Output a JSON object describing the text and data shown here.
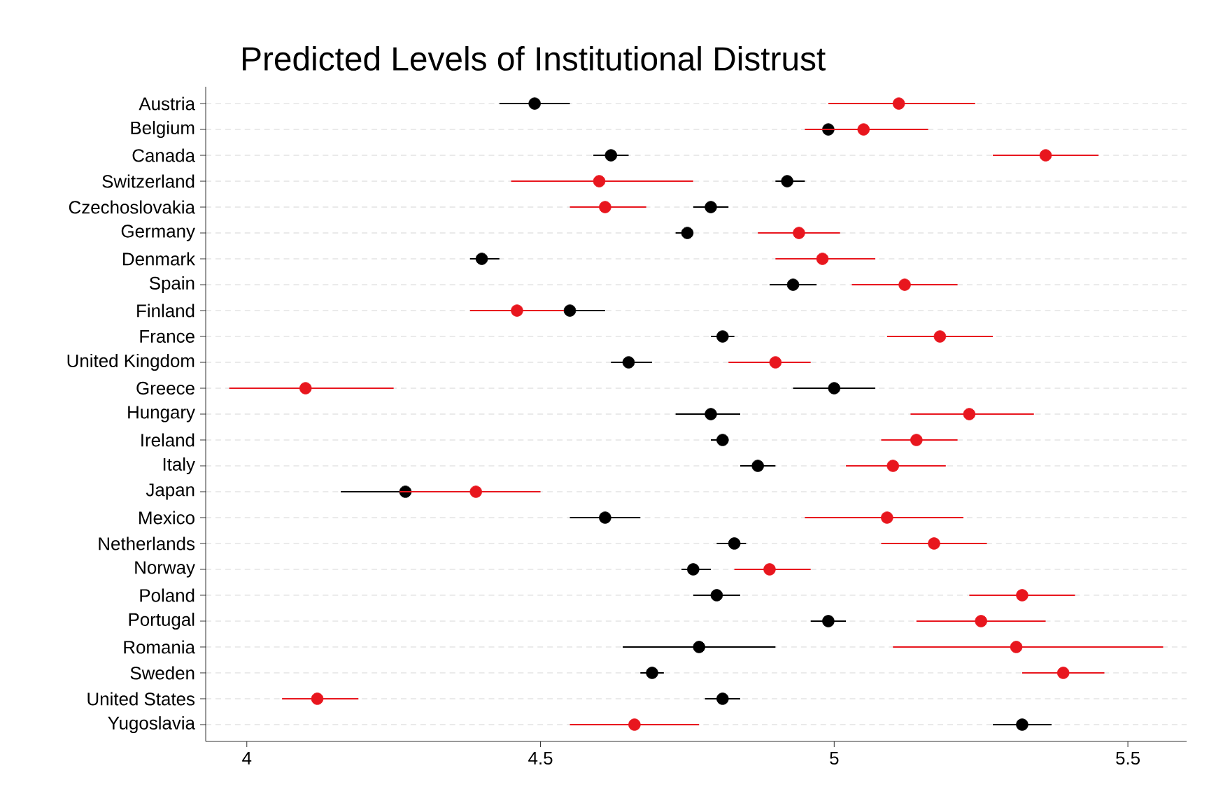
{
  "chart_data": {
    "type": "scatter",
    "orientation": "horizontal",
    "title": "Predicted Levels of Institutional Distrust",
    "categories": [
      "Austria",
      "Belgium",
      "Canada",
      "Switzerland",
      "Czechoslovakia",
      "Germany",
      "Denmark",
      "Spain",
      "Finland",
      "France",
      "United Kingdom",
      "Greece",
      "Hungary",
      "Ireland",
      "Italy",
      "Japan",
      "Mexico",
      "Netherlands",
      "Norway",
      "Poland",
      "Portugal",
      "Romania",
      "Sweden",
      "United States",
      "Yugoslavia"
    ],
    "xlim": [
      3.93,
      5.6
    ],
    "xticks": [
      4,
      4.5,
      5,
      5.5
    ],
    "grid": "y",
    "marker": "circle",
    "series": [
      {
        "color": "#000000",
        "values": [
          4.49,
          4.99,
          4.62,
          4.92,
          4.79,
          4.75,
          4.4,
          4.93,
          4.55,
          4.81,
          4.65,
          5.0,
          4.79,
          4.81,
          4.87,
          4.27,
          4.61,
          4.83,
          4.76,
          4.8,
          4.99,
          4.77,
          4.69,
          4.81,
          5.32
        ],
        "errors": [
          [
            4.43,
            4.55
          ],
          [
            4.98,
            5.01
          ],
          [
            4.59,
            4.65
          ],
          [
            4.9,
            4.95
          ],
          [
            4.76,
            4.82
          ],
          [
            4.73,
            4.76
          ],
          [
            4.38,
            4.43
          ],
          [
            4.89,
            4.97
          ],
          [
            4.5,
            4.61
          ],
          [
            4.79,
            4.83
          ],
          [
            4.62,
            4.69
          ],
          [
            4.93,
            5.07
          ],
          [
            4.73,
            4.84
          ],
          [
            4.79,
            4.82
          ],
          [
            4.84,
            4.9
          ],
          [
            4.16,
            4.38
          ],
          [
            4.55,
            4.67
          ],
          [
            4.8,
            4.85
          ],
          [
            4.74,
            4.79
          ],
          [
            4.76,
            4.84
          ],
          [
            4.96,
            5.02
          ],
          [
            4.64,
            4.9
          ],
          [
            4.67,
            4.71
          ],
          [
            4.78,
            4.84
          ],
          [
            5.27,
            5.37
          ]
        ]
      },
      {
        "color": "#e8161e",
        "values": [
          5.11,
          5.05,
          5.36,
          4.6,
          4.61,
          4.94,
          4.98,
          5.12,
          4.46,
          5.18,
          4.9,
          4.1,
          5.23,
          5.14,
          5.1,
          4.39,
          5.09,
          5.17,
          4.89,
          5.32,
          5.25,
          5.31,
          5.39,
          4.12,
          4.66
        ],
        "errors": [
          [
            4.99,
            5.24
          ],
          [
            4.95,
            5.16
          ],
          [
            5.27,
            5.45
          ],
          [
            4.45,
            4.76
          ],
          [
            4.55,
            4.68
          ],
          [
            4.87,
            5.01
          ],
          [
            4.9,
            5.07
          ],
          [
            5.03,
            5.21
          ],
          [
            4.38,
            4.54
          ],
          [
            5.09,
            5.27
          ],
          [
            4.82,
            4.96
          ],
          [
            3.97,
            4.25
          ],
          [
            5.13,
            5.34
          ],
          [
            5.08,
            5.21
          ],
          [
            5.02,
            5.19
          ],
          [
            4.26,
            4.5
          ],
          [
            4.95,
            5.22
          ],
          [
            5.08,
            5.26
          ],
          [
            4.83,
            4.96
          ],
          [
            5.23,
            5.41
          ],
          [
            5.14,
            5.36
          ],
          [
            5.1,
            5.56
          ],
          [
            5.32,
            5.46
          ],
          [
            4.06,
            4.19
          ],
          [
            4.55,
            4.77
          ]
        ]
      }
    ]
  }
}
